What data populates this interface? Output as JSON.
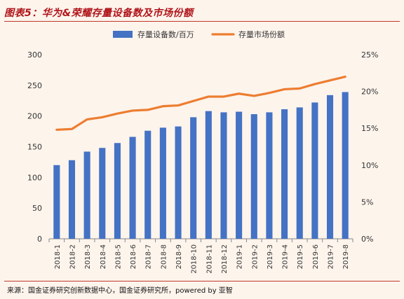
{
  "figure_title": "图表5：华为&荣耀存量设备数及市场份额",
  "source": "来源：国金证券研究创新数据中心，国金证券研究所，powered by 亚智",
  "colors": {
    "bar": "#4472c4",
    "line": "#ed7d31",
    "title": "#b0141a",
    "background": "#fdf4ec",
    "axis": "#888888",
    "text": "#333333"
  },
  "chart_data": {
    "type": "bar",
    "categories": [
      "2018-1",
      "2018-2",
      "2018-3",
      "2018-4",
      "2018-5",
      "2018-6",
      "2018-7",
      "2018-8",
      "2018-9",
      "2018-10",
      "2018-11",
      "2018-12",
      "2019-1",
      "2019-2",
      "2019-3",
      "2019-4",
      "2019-5",
      "2019-6",
      "2019-7",
      "2019-8"
    ],
    "series": [
      {
        "name": "存量设备数/百万",
        "type": "bar",
        "axis": "left",
        "values": [
          120,
          128,
          142,
          148,
          156,
          166,
          176,
          181,
          183,
          198,
          208,
          206,
          207,
          203,
          206,
          211,
          214,
          222,
          234,
          239
        ]
      },
      {
        "name": "存量市场份额",
        "type": "line",
        "axis": "right",
        "values": [
          0.148,
          0.149,
          0.162,
          0.165,
          0.17,
          0.174,
          0.175,
          0.18,
          0.181,
          0.187,
          0.193,
          0.193,
          0.197,
          0.194,
          0.198,
          0.203,
          0.204,
          0.21,
          0.215,
          0.22
        ]
      }
    ],
    "ylim_left": [
      0,
      300
    ],
    "ylim_right": [
      0,
      0.25
    ],
    "yticks_left": [
      "0",
      "50",
      "100",
      "150",
      "200",
      "250",
      "300"
    ],
    "yticks_right": [
      "0%",
      "5%",
      "10%",
      "15%",
      "20%",
      "25%"
    ],
    "legend_position": "top-center",
    "grid": false
  }
}
